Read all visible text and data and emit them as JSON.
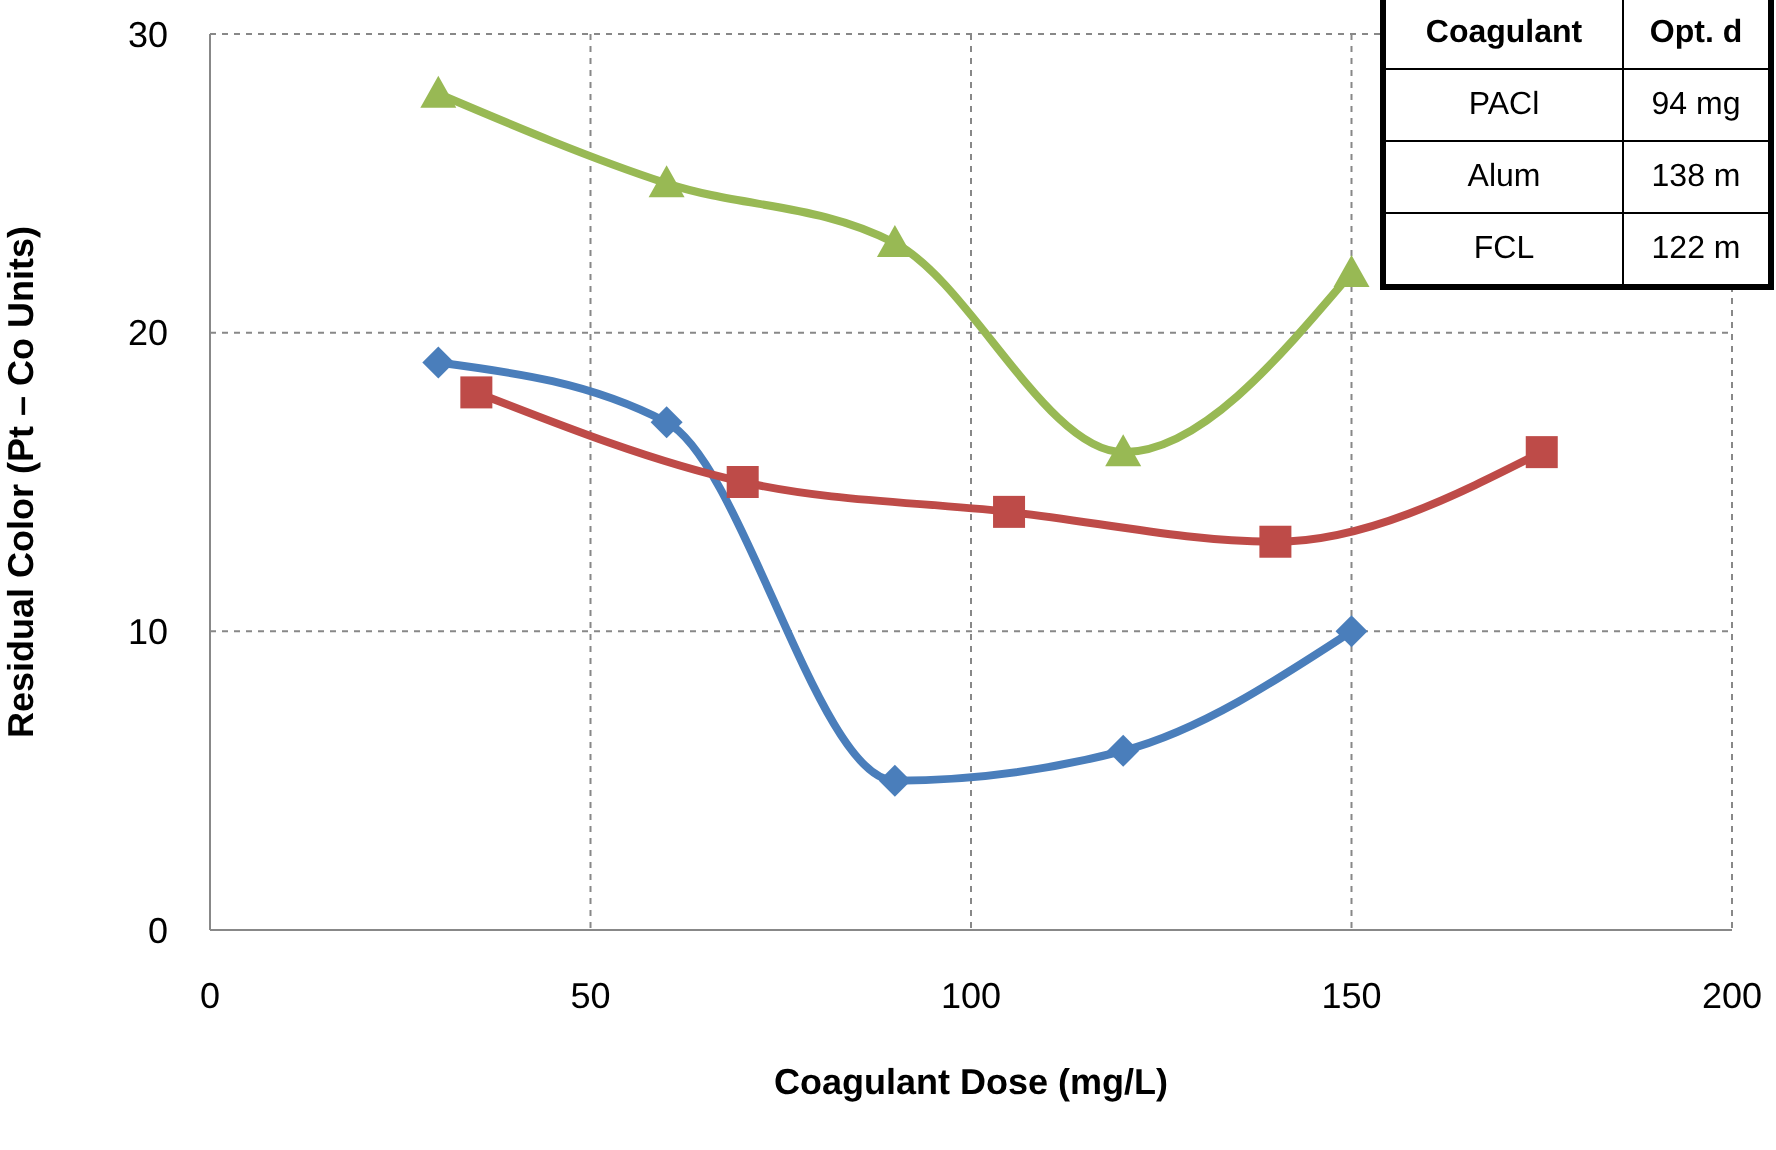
{
  "chart_data": {
    "type": "line",
    "xlabel": "Coagulant Dose (mg/L)",
    "ylabel": "Residual Color (Pt – Co Units)",
    "xlim": [
      0,
      200
    ],
    "xticks": [
      0,
      50,
      100,
      150,
      200
    ],
    "ylim": [
      0,
      30
    ],
    "yticks": [
      0,
      10,
      20,
      30
    ],
    "grid": true,
    "annotations": [
      "Coagulant",
      "Opt. d",
      "PACl",
      "94 mg",
      "Alum",
      "138 m",
      "FCL",
      "122 m"
    ],
    "series": [
      {
        "color": "#4a7ebb",
        "marker": "diamond",
        "x": [
          30,
          60,
          90,
          120,
          150
        ],
        "values": [
          19,
          17,
          5,
          6,
          10
        ]
      },
      {
        "color": "#be4b48",
        "marker": "square",
        "x": [
          35,
          70,
          105,
          140,
          175
        ],
        "values": [
          18,
          15,
          14,
          13,
          16
        ]
      },
      {
        "color": "#98b954",
        "marker": "triangle",
        "x": [
          30,
          60,
          90,
          120,
          150
        ],
        "values": [
          28,
          25,
          23,
          16,
          22
        ]
      }
    ]
  }
}
